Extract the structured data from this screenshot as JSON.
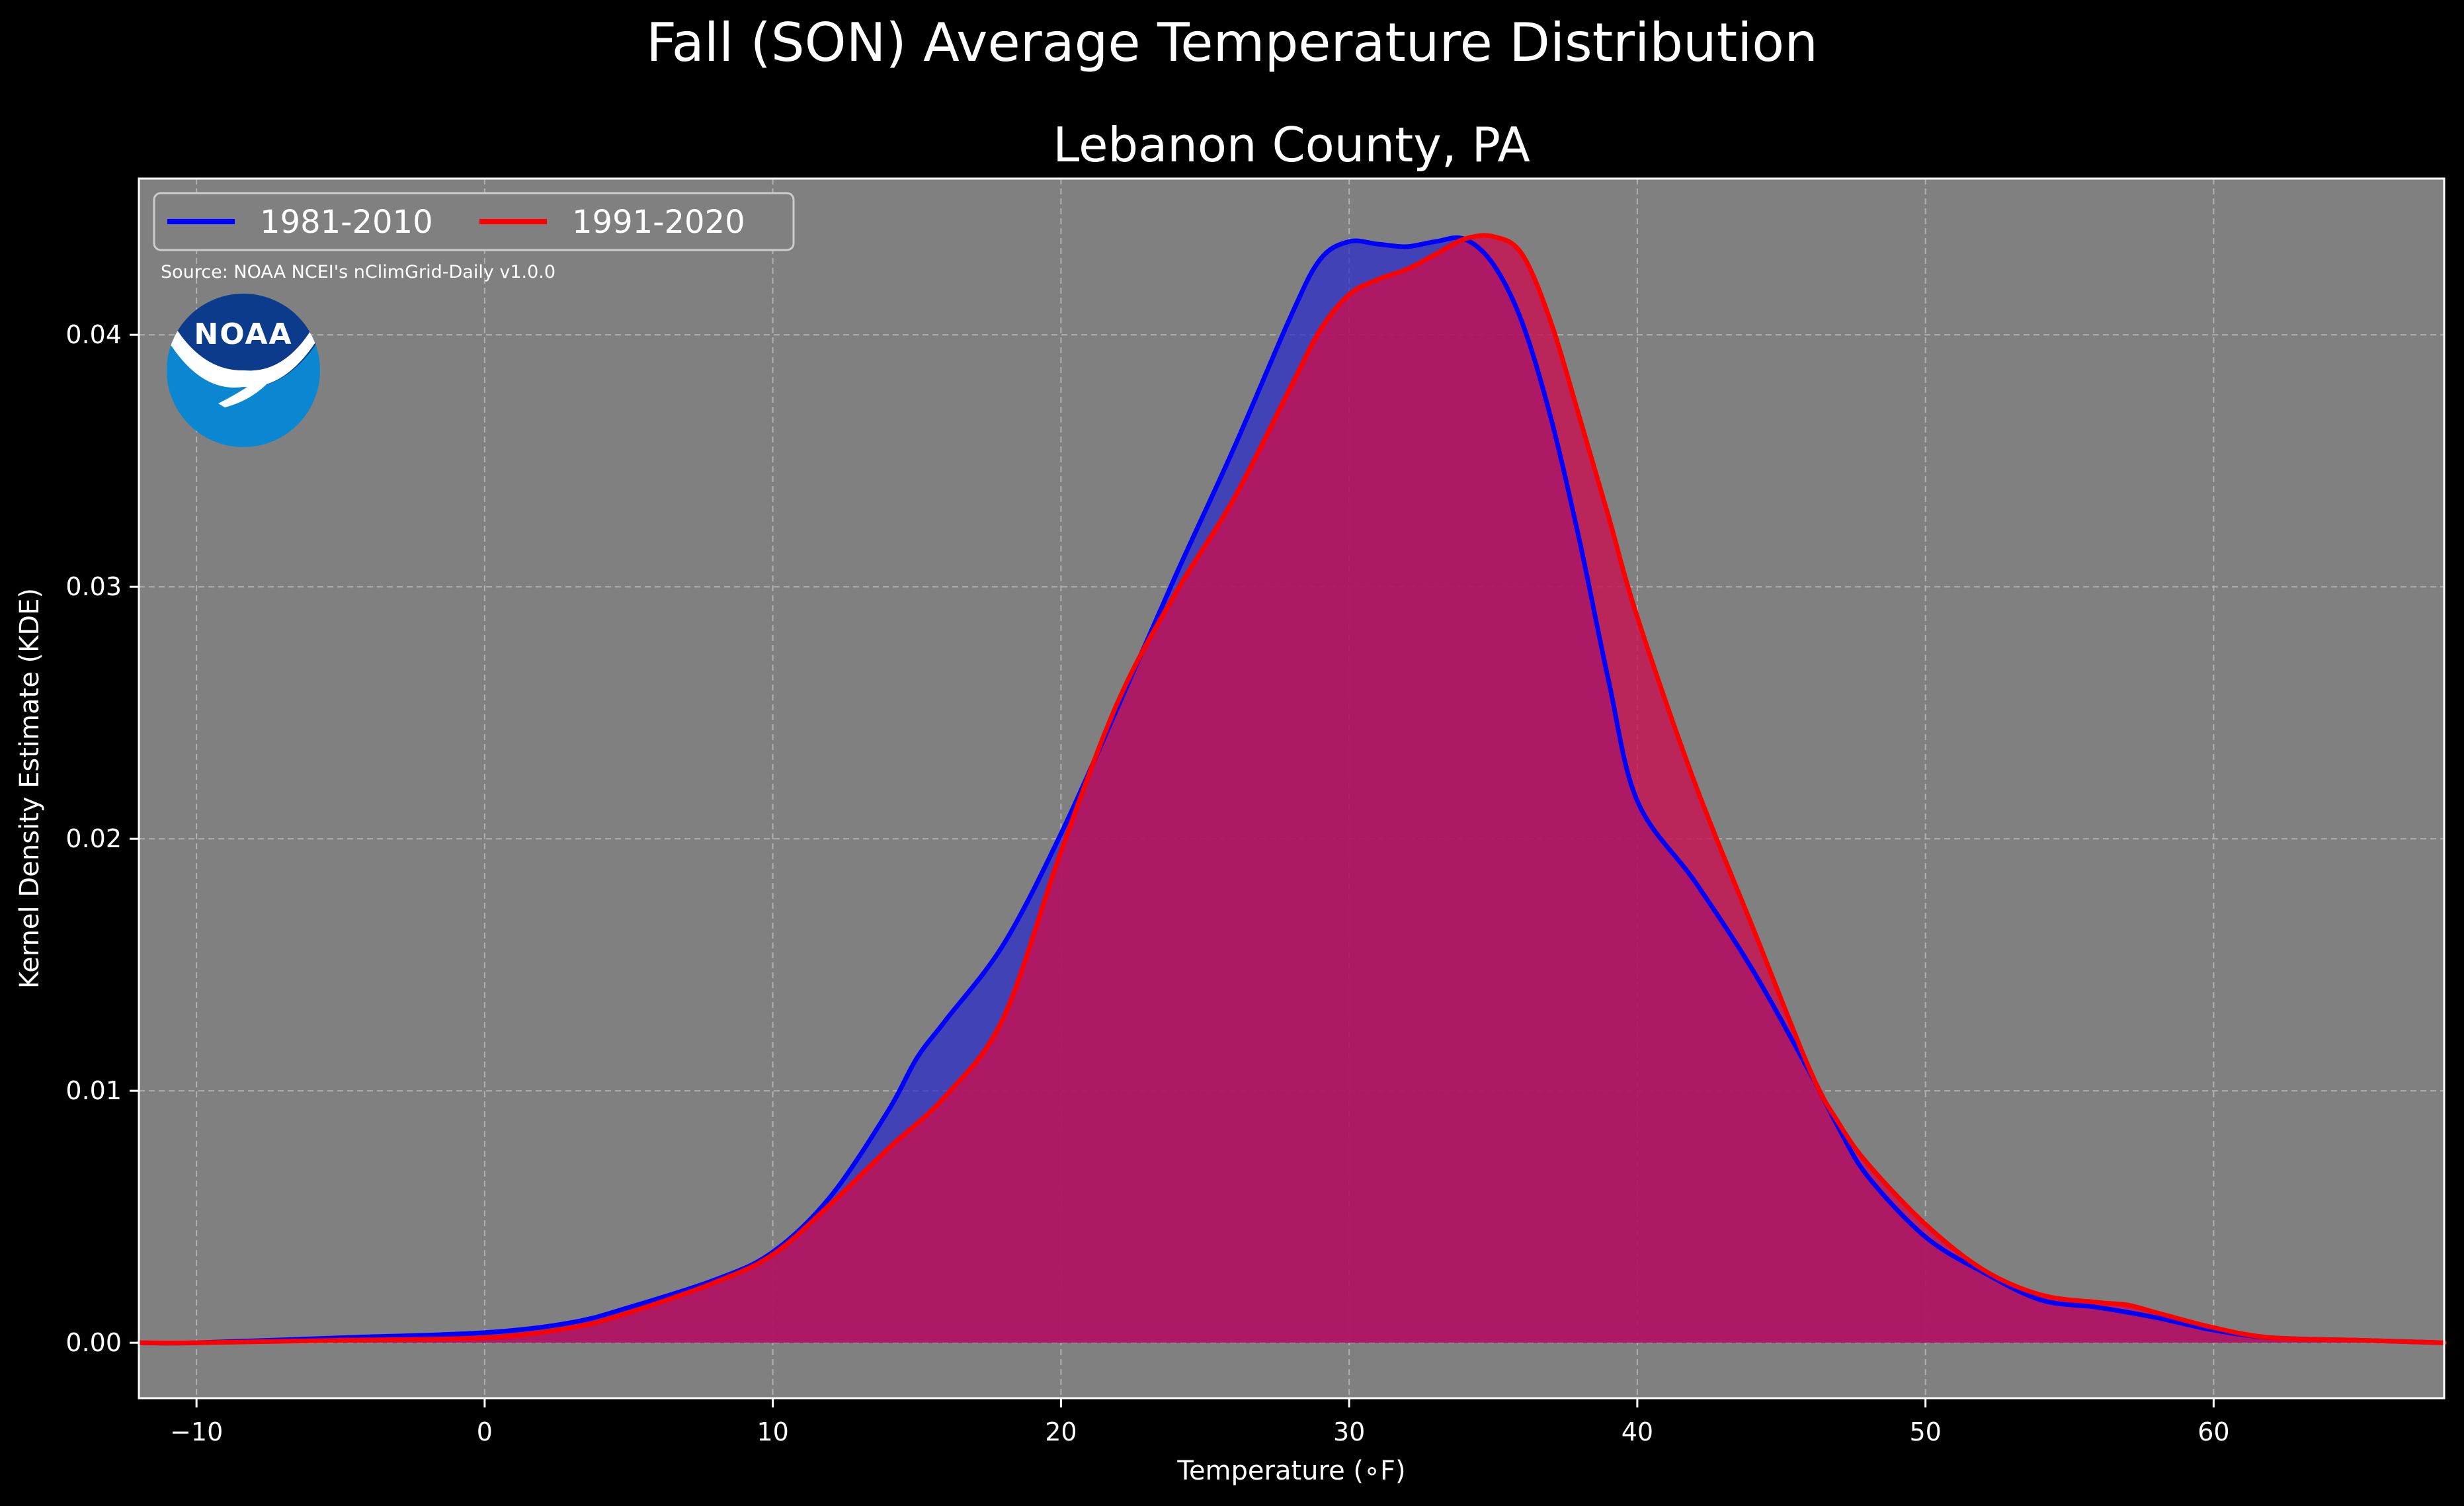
{
  "title": "Fall (SON) Average Temperature Distribution",
  "subtitle": "Lebanon County, PA",
  "source": "Source: NOAA NCEI's nClimGrid-Daily v1.0.0",
  "logo": {
    "text": "NOAA",
    "icon": "noaa-logo-icon",
    "colors": {
      "dark": "#0c3b8c",
      "light": "#0a87d0"
    }
  },
  "colors": {
    "background": "#000000",
    "plot_background": "#808080",
    "series_1981_2010": "#0000ff",
    "series_1991_2020": "#ff0000",
    "fill_1981_2010": "#2a2acc",
    "fill_1991_2020": "#c80f50"
  },
  "chart_data": {
    "type": "area",
    "title": "Lebanon County, PA",
    "xlabel": "Temperature (∘F)",
    "ylabel": "Kernel Density Estimate (KDE)",
    "xlim": [
      -12,
      68
    ],
    "ylim": [
      -0.0022,
      0.0462
    ],
    "xticks": [
      -10,
      0,
      10,
      20,
      30,
      40,
      50,
      60
    ],
    "xtick_labels": [
      "−10",
      "0",
      "10",
      "20",
      "30",
      "40",
      "50",
      "60"
    ],
    "yticks": [
      0.0,
      0.01,
      0.02,
      0.03,
      0.04
    ],
    "ytick_labels": [
      "0.00",
      "0.01",
      "0.02",
      "0.03",
      "0.04"
    ],
    "grid": true,
    "legend_position": "top-left",
    "series": [
      {
        "name": "1981-2010",
        "color": "#0000ff",
        "x": [
          -12,
          -10,
          -5,
          0,
          3,
          5,
          8,
          10,
          12,
          14,
          15,
          16,
          18,
          20,
          22,
          24,
          26,
          28,
          29,
          30,
          31,
          32,
          33,
          34,
          35,
          36,
          37,
          38,
          39,
          40,
          42,
          44,
          46,
          47,
          48,
          50,
          52,
          54,
          56,
          58,
          60,
          62,
          65,
          68
        ],
        "y": [
          0.0,
          0.0,
          0.0002,
          0.0004,
          0.0008,
          0.0014,
          0.0025,
          0.0036,
          0.0058,
          0.0092,
          0.0113,
          0.0128,
          0.0158,
          0.0202,
          0.0253,
          0.0305,
          0.0355,
          0.0408,
          0.043,
          0.0437,
          0.0436,
          0.0435,
          0.0437,
          0.0438,
          0.0428,
          0.0405,
          0.0367,
          0.0318,
          0.0263,
          0.0215,
          0.0183,
          0.0148,
          0.0107,
          0.0085,
          0.0066,
          0.0042,
          0.0028,
          0.0017,
          0.0014,
          0.001,
          0.0005,
          0.0002,
          0.0001,
          0.0
        ]
      },
      {
        "name": "1991-2020",
        "color": "#ff0000",
        "x": [
          -12,
          -10,
          -5,
          0,
          3,
          5,
          8,
          10,
          12,
          14,
          16,
          18,
          20,
          22,
          24,
          26,
          28,
          29,
          30,
          31,
          32,
          33,
          34,
          35,
          36,
          37,
          38,
          39,
          40,
          42,
          44,
          46,
          47,
          48,
          50,
          52,
          54,
          56,
          57,
          58,
          60,
          62,
          65,
          68
        ],
        "y": [
          0.0,
          0.0,
          0.0001,
          0.0002,
          0.0006,
          0.0012,
          0.0024,
          0.0035,
          0.0055,
          0.0077,
          0.0098,
          0.0129,
          0.0195,
          0.0255,
          0.0298,
          0.0335,
          0.038,
          0.0402,
          0.0416,
          0.0422,
          0.0426,
          0.0432,
          0.0438,
          0.0439,
          0.0432,
          0.0405,
          0.0367,
          0.0328,
          0.0288,
          0.0222,
          0.0165,
          0.0108,
          0.0087,
          0.0071,
          0.0047,
          0.0029,
          0.0019,
          0.0016,
          0.0015,
          0.0012,
          0.0006,
          0.0002,
          0.0001,
          0.0
        ]
      }
    ]
  }
}
